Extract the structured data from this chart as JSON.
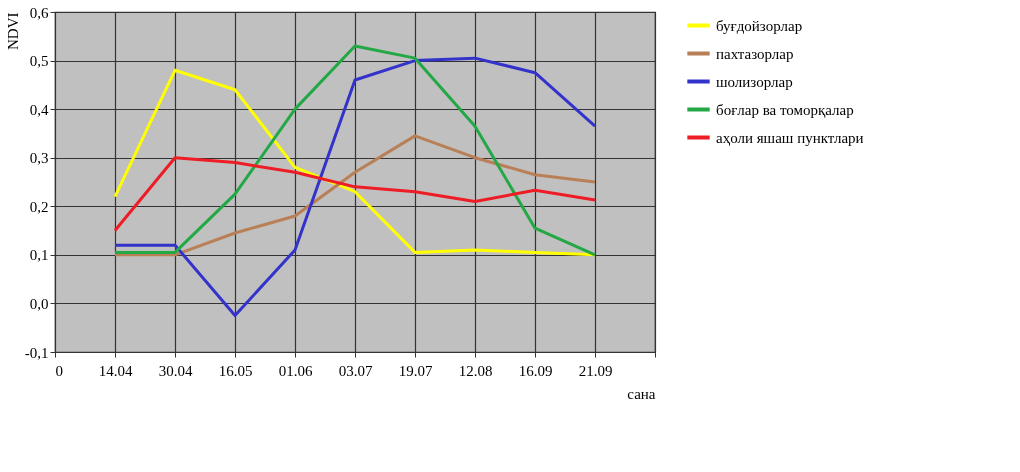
{
  "chart_data": {
    "type": "line",
    "xlabel": "сана",
    "ylabel": "NDVI",
    "categories": [
      "0",
      "14.04",
      "30.04",
      "16.05",
      "01.06",
      "03.07",
      "19.07",
      "12.08",
      "16.09",
      "21.09",
      null
    ],
    "ylim": [
      -0.1,
      0.6
    ],
    "yticks": [
      {
        "value": -0.1,
        "label": "-0,1"
      },
      {
        "value": 0,
        "label": "0,0"
      },
      {
        "value": 0.1,
        "label": "0,1"
      },
      {
        "value": 0.2,
        "label": "0,2"
      },
      {
        "value": 0.3,
        "label": "0,3"
      },
      {
        "value": 0.4,
        "label": "0,4"
      },
      {
        "value": 0.5,
        "label": "0,5"
      },
      {
        "value": 0.6,
        "label": "0,6"
      }
    ],
    "grid": true,
    "legend": "right",
    "marker": "none",
    "line_style": "solid",
    "series": [
      {
        "name": "буғдойзорлар",
        "color": "#ffff00",
        "values": [
          null,
          0.22,
          0.48,
          0.44,
          0.28,
          0.23,
          0.105,
          0.11,
          0.105,
          0.1,
          null
        ]
      },
      {
        "name": "пахтазорлар",
        "color": "#b97f56",
        "values": [
          null,
          0.1,
          0.1,
          0.145,
          0.18,
          0.27,
          0.345,
          0.3,
          0.265,
          0.25,
          null
        ]
      },
      {
        "name": "шолизорлар",
        "color": "#3333cc",
        "values": [
          null,
          0.12,
          0.12,
          -0.025,
          0.11,
          0.46,
          0.5,
          0.505,
          0.475,
          0.365,
          null
        ]
      },
      {
        "name": "боғлар ва томорқалар",
        "color": "#22a844",
        "values": [
          null,
          0.105,
          0.105,
          0.225,
          0.4,
          0.53,
          0.505,
          0.365,
          0.155,
          0.1,
          null
        ]
      },
      {
        "name": "аҳоли яшаш пунктлари",
        "color": "#ee1c24",
        "values": [
          null,
          0.15,
          0.3,
          0.29,
          0.27,
          0.24,
          0.23,
          0.21,
          0.233,
          0.213,
          null
        ]
      }
    ]
  }
}
